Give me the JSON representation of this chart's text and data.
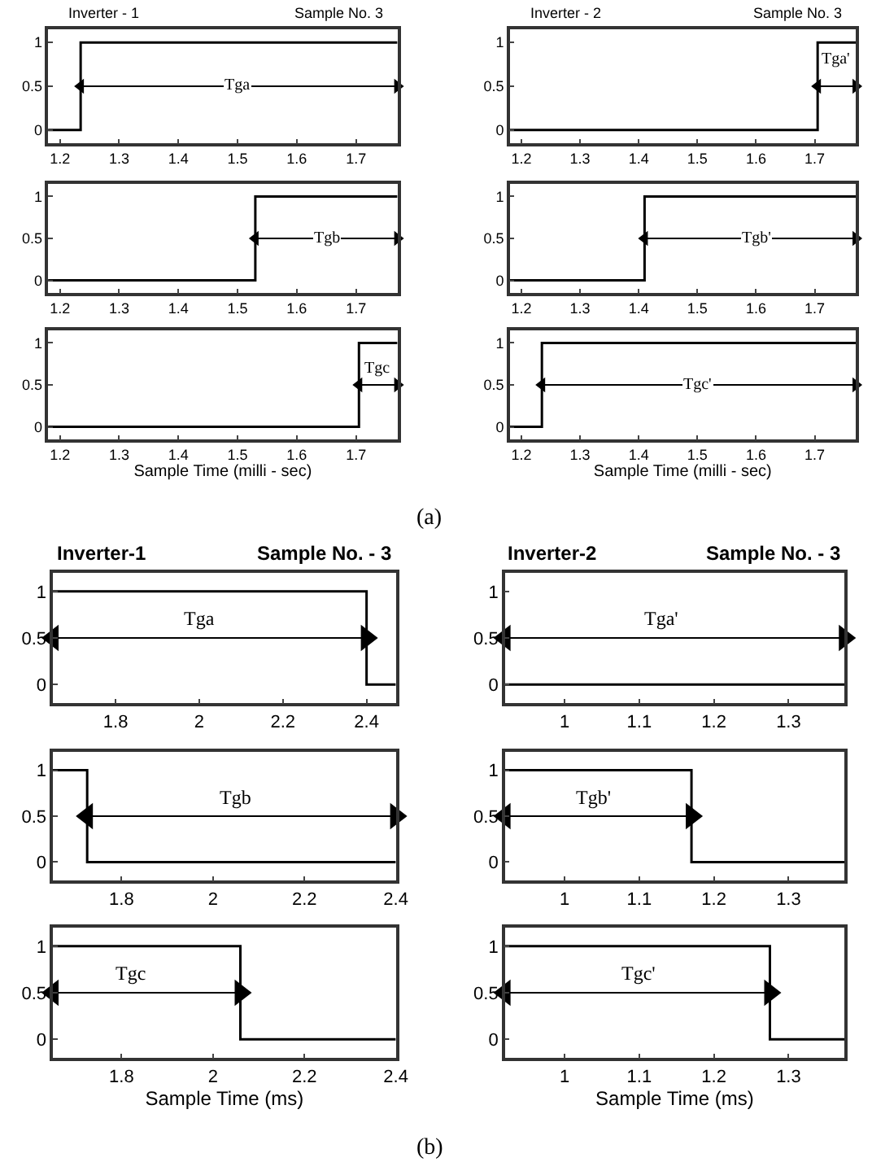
{
  "chart_data": [
    {
      "type": "step",
      "title": "Inverter - 1",
      "subtitle": "Sample No. 3",
      "x": [
        1.18,
        1.235,
        1.77
      ],
      "xlim": [
        1.18,
        1.77
      ],
      "xticks": [
        1.2,
        1.3,
        1.4,
        1.5,
        1.6,
        1.7
      ],
      "ylim": [
        -0.15,
        1.15
      ],
      "yticks": [
        0,
        0.5,
        1
      ],
      "series": [
        {
          "color": "#000000",
          "values": [
            0,
            1,
            1
          ]
        },
        {
          "type": "line",
          "x": [
            1.235,
            1.77
          ],
          "color": "#000000",
          "marker": "triangle",
          "values": [
            0.5,
            0.5
          ]
        }
      ],
      "annotations": [
        {
          "text": "Tga",
          "x": 1.5,
          "y": 0.5
        }
      ]
    },
    {
      "type": "step",
      "x": [
        1.18,
        1.53,
        1.77
      ],
      "xlim": [
        1.18,
        1.77
      ],
      "xticks": [
        1.2,
        1.3,
        1.4,
        1.5,
        1.6,
        1.7
      ],
      "ylim": [
        -0.15,
        1.15
      ],
      "yticks": [
        0,
        0.5,
        1
      ],
      "series": [
        {
          "color": "#000000",
          "values": [
            0,
            1,
            1
          ]
        },
        {
          "type": "line",
          "x": [
            1.53,
            1.77
          ],
          "color": "#000000",
          "marker": "triangle",
          "values": [
            0.5,
            0.5
          ]
        }
      ],
      "annotations": [
        {
          "text": "Tgb",
          "x": 1.65,
          "y": 0.5
        }
      ]
    },
    {
      "type": "step",
      "xlabel": "Sample Time (milli - sec)",
      "x": [
        1.18,
        1.705,
        1.77
      ],
      "xlim": [
        1.18,
        1.77
      ],
      "xticks": [
        1.2,
        1.3,
        1.4,
        1.5,
        1.6,
        1.7
      ],
      "ylim": [
        -0.15,
        1.15
      ],
      "yticks": [
        0,
        0.5,
        1
      ],
      "series": [
        {
          "color": "#000000",
          "values": [
            0,
            1,
            1
          ]
        },
        {
          "type": "line",
          "x": [
            1.705,
            1.77
          ],
          "color": "#000000",
          "marker": "triangle",
          "values": [
            0.5,
            0.5
          ]
        }
      ],
      "annotations": [
        {
          "text": "Tgc",
          "x": 1.737,
          "y": 0.7
        },
        "(a)"
      ]
    },
    {
      "type": "step",
      "title": "Inverter - 2",
      "subtitle": "Sample No. 3",
      "x": [
        1.18,
        1.705,
        1.77
      ],
      "xlim": [
        1.18,
        1.77
      ],
      "xticks": [
        1.2,
        1.3,
        1.4,
        1.5,
        1.6,
        1.7
      ],
      "ylim": [
        -0.15,
        1.15
      ],
      "yticks": [
        0,
        0.5,
        1
      ],
      "series": [
        {
          "color": "#000000",
          "values": [
            0,
            1,
            1
          ]
        },
        {
          "type": "line",
          "x": [
            1.705,
            1.77
          ],
          "color": "#000000",
          "marker": "triangle",
          "values": [
            0.5,
            0.5
          ]
        }
      ],
      "annotations": [
        {
          "text": "Tga'",
          "x": 1.737,
          "y": 0.8
        }
      ]
    },
    {
      "type": "step",
      "x": [
        1.18,
        1.41,
        1.77
      ],
      "xlim": [
        1.18,
        1.77
      ],
      "xticks": [
        1.2,
        1.3,
        1.4,
        1.5,
        1.6,
        1.7
      ],
      "ylim": [
        -0.15,
        1.15
      ],
      "yticks": [
        0,
        0.5,
        1
      ],
      "series": [
        {
          "color": "#000000",
          "values": [
            0,
            1,
            1
          ]
        },
        {
          "type": "line",
          "x": [
            1.41,
            1.77
          ],
          "color": "#000000",
          "marker": "triangle",
          "values": [
            0.5,
            0.5
          ]
        }
      ],
      "annotations": [
        {
          "text": "Tgb'",
          "x": 1.6,
          "y": 0.5
        }
      ]
    },
    {
      "type": "step",
      "xlabel": "Sample Time (milli - sec)",
      "x": [
        1.18,
        1.235,
        1.77
      ],
      "xlim": [
        1.18,
        1.77
      ],
      "xticks": [
        1.2,
        1.3,
        1.4,
        1.5,
        1.6,
        1.7
      ],
      "ylim": [
        -0.15,
        1.15
      ],
      "yticks": [
        0,
        0.5,
        1
      ],
      "series": [
        {
          "color": "#000000",
          "values": [
            0,
            1,
            1
          ]
        },
        {
          "type": "line",
          "x": [
            1.235,
            1.77
          ],
          "color": "#000000",
          "marker": "triangle",
          "values": [
            0.5,
            0.5
          ]
        }
      ],
      "annotations": [
        {
          "text": "Tgc'",
          "x": 1.5,
          "y": 0.5
        }
      ]
    },
    {
      "type": "step",
      "title": "Inverter-1",
      "subtitle": "Sample No. - 3",
      "x": [
        1.65,
        2.4,
        2.47
      ],
      "xlim": [
        1.65,
        2.47
      ],
      "xticks": [
        1.8,
        2,
        2.2,
        2.4
      ],
      "ylim": [
        -0.2,
        1.2
      ],
      "yticks": [
        0,
        0.5,
        1
      ],
      "series": [
        {
          "color": "#000000",
          "values": [
            1,
            0,
            0
          ]
        },
        {
          "type": "line",
          "x": [
            1.65,
            2.4
          ],
          "color": "#000000",
          "marker": "triangle",
          "values": [
            0.5,
            0.5
          ]
        }
      ],
      "annotations": [
        {
          "text": "Tga",
          "x": 2.0,
          "y": 0.5
        }
      ]
    },
    {
      "type": "step",
      "x": [
        1.65,
        1.725,
        2.4
      ],
      "xlim": [
        1.65,
        2.4
      ],
      "xticks": [
        1.8,
        2,
        2.2,
        2.4
      ],
      "ylim": [
        -0.2,
        1.2
      ],
      "yticks": [
        0,
        0.5,
        1
      ],
      "series": [
        {
          "color": "#000000",
          "values": [
            1,
            0,
            0
          ]
        },
        {
          "type": "line",
          "x": [
            1.725,
            2.4
          ],
          "color": "#000000",
          "marker": "triangle",
          "values": [
            0.5,
            0.5
          ]
        }
      ],
      "annotations": [
        {
          "text": "Tgb",
          "x": 2.05,
          "y": 0.5
        }
      ]
    },
    {
      "type": "step",
      "xlabel": "Sample Time (ms)",
      "x": [
        1.65,
        2.06,
        2.4
      ],
      "xlim": [
        1.65,
        2.4
      ],
      "xticks": [
        1.8,
        2,
        2.2,
        2.4
      ],
      "ylim": [
        -0.2,
        1.2
      ],
      "yticks": [
        0,
        0.5,
        1
      ],
      "series": [
        {
          "color": "#000000",
          "values": [
            1,
            0,
            0
          ]
        },
        {
          "type": "line",
          "x": [
            1.65,
            2.06
          ],
          "color": "#000000",
          "marker": "triangle",
          "values": [
            0.5,
            0.5
          ]
        }
      ],
      "annotations": [
        {
          "text": "Tgc",
          "x": 1.82,
          "y": 0.5
        },
        "(b)"
      ]
    },
    {
      "type": "step",
      "title": "Inverter-2",
      "subtitle": "Sample No. - 3",
      "x": [
        0.92,
        1.375
      ],
      "xlim": [
        0.92,
        1.375
      ],
      "xticks": [
        1,
        1.1,
        1.2,
        1.3
      ],
      "ylim": [
        -0.2,
        1.2
      ],
      "yticks": [
        0,
        0.5,
        1
      ],
      "series": [
        {
          "color": "#000000",
          "values": [
            0,
            0
          ]
        },
        {
          "type": "line",
          "x": [
            0.92,
            1.375
          ],
          "color": "#000000",
          "marker": "triangle",
          "values": [
            0.5,
            0.5
          ]
        }
      ],
      "annotations": [
        {
          "text": "Tga'",
          "x": 1.13,
          "y": 0.5
        }
      ]
    },
    {
      "type": "step",
      "x": [
        0.92,
        1.17,
        1.375
      ],
      "xlim": [
        0.92,
        1.375
      ],
      "xticks": [
        1,
        1.1,
        1.2,
        1.3
      ],
      "ylim": [
        -0.2,
        1.2
      ],
      "yticks": [
        0,
        0.5,
        1
      ],
      "series": [
        {
          "color": "#000000",
          "values": [
            1,
            0,
            0
          ]
        },
        {
          "type": "line",
          "x": [
            0.92,
            1.17
          ],
          "color": "#000000",
          "marker": "triangle",
          "values": [
            0.5,
            0.5
          ]
        }
      ],
      "annotations": [
        {
          "text": "Tgb'",
          "x": 1.04,
          "y": 0.5
        }
      ]
    },
    {
      "type": "step",
      "xlabel": "Sample Time (ms)",
      "x": [
        0.92,
        1.275,
        1.375
      ],
      "xlim": [
        0.92,
        1.375
      ],
      "xticks": [
        1,
        1.1,
        1.2,
        1.3
      ],
      "ylim": [
        -0.2,
        1.2
      ],
      "yticks": [
        0,
        0.5,
        1
      ],
      "series": [
        {
          "color": "#000000",
          "values": [
            1,
            0,
            0
          ]
        },
        {
          "type": "line",
          "x": [
            0.92,
            1.275
          ],
          "color": "#000000",
          "marker": "triangle",
          "values": [
            0.5,
            0.5
          ]
        }
      ],
      "annotations": [
        {
          "text": "Tgc'",
          "x": 1.1,
          "y": 0.5
        }
      ]
    }
  ]
}
